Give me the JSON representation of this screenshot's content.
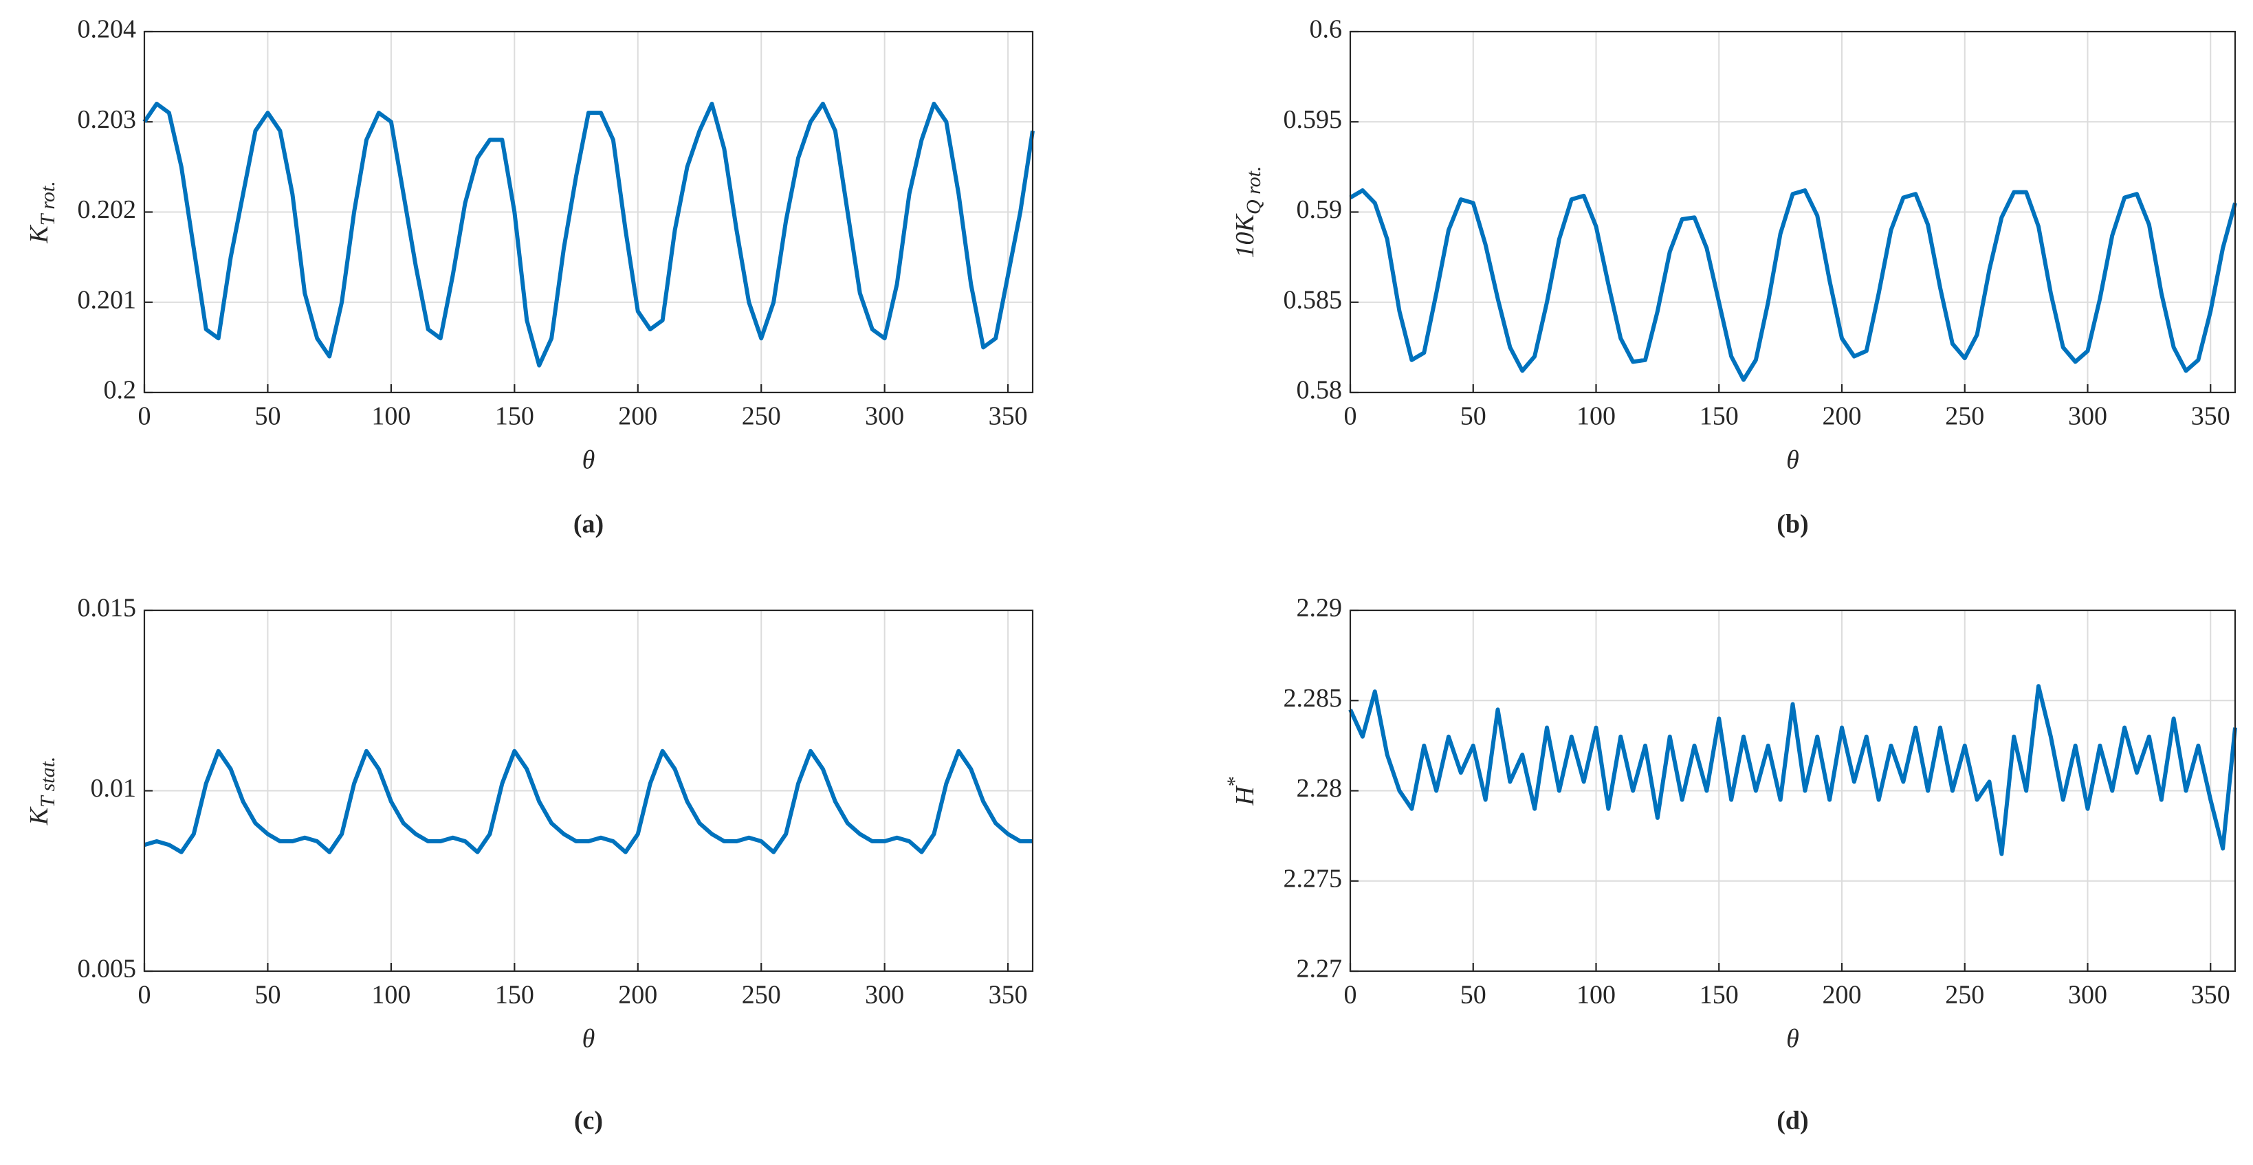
{
  "chart_data": [
    {
      "type": "line",
      "label": "(a)",
      "xlabel": "θ",
      "ylabel": {
        "base": "K",
        "sub": "T rot."
      },
      "xlim": [
        0,
        360
      ],
      "xticks": [
        0,
        50,
        100,
        150,
        200,
        250,
        300,
        350
      ],
      "ylim": [
        0.2,
        0.204
      ],
      "yticks": [
        0.2,
        0.201,
        0.202,
        0.203,
        0.204
      ],
      "grid": true,
      "x": [
        0,
        5,
        10,
        15,
        20,
        25,
        30,
        35,
        40,
        45,
        50,
        55,
        60,
        65,
        70,
        75,
        80,
        85,
        90,
        95,
        100,
        105,
        110,
        115,
        120,
        125,
        130,
        135,
        140,
        145,
        150,
        155,
        160,
        165,
        170,
        175,
        180,
        185,
        190,
        195,
        200,
        205,
        210,
        215,
        220,
        225,
        230,
        235,
        240,
        245,
        250,
        255,
        260,
        265,
        270,
        275,
        280,
        285,
        290,
        295,
        300,
        305,
        310,
        315,
        320,
        325,
        330,
        335,
        340,
        345,
        350,
        355,
        360
      ],
      "series": [
        {
          "color": "#0072bd",
          "values": [
            0.203,
            0.2032,
            0.2031,
            0.2025,
            0.2016,
            0.2007,
            0.2006,
            0.2015,
            0.2022,
            0.2029,
            0.2031,
            0.2029,
            0.2022,
            0.2011,
            0.2006,
            0.2004,
            0.201,
            0.202,
            0.2028,
            0.2031,
            0.203,
            0.2022,
            0.2014,
            0.2007,
            0.2006,
            0.2013,
            0.2021,
            0.2026,
            0.2028,
            0.2028,
            0.202,
            0.2008,
            0.2003,
            0.2006,
            0.2016,
            0.2024,
            0.2031,
            0.2031,
            0.2028,
            0.2018,
            0.2009,
            0.2007,
            0.2008,
            0.2018,
            0.2025,
            0.2029,
            0.2032,
            0.2027,
            0.2018,
            0.201,
            0.2006,
            0.201,
            0.2019,
            0.2026,
            0.203,
            0.2032,
            0.2029,
            0.202,
            0.2011,
            0.2007,
            0.2006,
            0.2012,
            0.2022,
            0.2028,
            0.2032,
            0.203,
            0.2022,
            0.2012,
            0.2005,
            0.2006,
            0.2013,
            0.202,
            0.2029
          ]
        }
      ]
    },
    {
      "type": "line",
      "label": "(b)",
      "xlabel": "θ",
      "ylabel": {
        "base": "10K",
        "sub": "Q rot."
      },
      "xlim": [
        0,
        360
      ],
      "xticks": [
        0,
        50,
        100,
        150,
        200,
        250,
        300,
        350
      ],
      "ylim": [
        0.58,
        0.6
      ],
      "yticks": [
        0.58,
        0.585,
        0.59,
        0.595,
        0.6
      ],
      "grid": true,
      "x": [
        0,
        5,
        10,
        15,
        20,
        25,
        30,
        35,
        40,
        45,
        50,
        55,
        60,
        65,
        70,
        75,
        80,
        85,
        90,
        95,
        100,
        105,
        110,
        115,
        120,
        125,
        130,
        135,
        140,
        145,
        150,
        155,
        160,
        165,
        170,
        175,
        180,
        185,
        190,
        195,
        200,
        205,
        210,
        215,
        220,
        225,
        230,
        235,
        240,
        245,
        250,
        255,
        260,
        265,
        270,
        275,
        280,
        285,
        290,
        295,
        300,
        305,
        310,
        315,
        320,
        325,
        330,
        335,
        340,
        345,
        350,
        355,
        360
      ],
      "series": [
        {
          "color": "#0072bd",
          "values": [
            0.5908,
            0.5912,
            0.5905,
            0.5885,
            0.5845,
            0.5818,
            0.5822,
            0.5855,
            0.589,
            0.5907,
            0.5905,
            0.5882,
            0.5852,
            0.5825,
            0.5812,
            0.582,
            0.585,
            0.5885,
            0.5907,
            0.5909,
            0.5892,
            0.586,
            0.583,
            0.5817,
            0.5818,
            0.5845,
            0.5878,
            0.5896,
            0.5897,
            0.588,
            0.585,
            0.582,
            0.5807,
            0.5818,
            0.585,
            0.5888,
            0.591,
            0.5912,
            0.5898,
            0.5862,
            0.583,
            0.582,
            0.5823,
            0.5855,
            0.589,
            0.5908,
            0.591,
            0.5893,
            0.5858,
            0.5827,
            0.5819,
            0.5832,
            0.5868,
            0.5897,
            0.5911,
            0.5911,
            0.5892,
            0.5855,
            0.5825,
            0.5817,
            0.5823,
            0.5852,
            0.5887,
            0.5908,
            0.591,
            0.5893,
            0.5855,
            0.5825,
            0.5812,
            0.5818,
            0.5845,
            0.588,
            0.5905
          ]
        }
      ]
    },
    {
      "type": "line",
      "label": "(c)",
      "xlabel": "θ",
      "ylabel": {
        "base": "K",
        "sub": "T stat."
      },
      "xlim": [
        0,
        360
      ],
      "xticks": [
        0,
        50,
        100,
        150,
        200,
        250,
        300,
        350
      ],
      "ylim": [
        0.005,
        0.015
      ],
      "yticks": [
        0.005,
        0.01,
        0.015
      ],
      "grid": true,
      "x": [
        0,
        5,
        10,
        15,
        20,
        25,
        30,
        35,
        40,
        45,
        50,
        55,
        60,
        65,
        70,
        75,
        80,
        85,
        90,
        95,
        100,
        105,
        110,
        115,
        120,
        125,
        130,
        135,
        140,
        145,
        150,
        155,
        160,
        165,
        170,
        175,
        180,
        185,
        190,
        195,
        200,
        205,
        210,
        215,
        220,
        225,
        230,
        235,
        240,
        245,
        250,
        255,
        260,
        265,
        270,
        275,
        280,
        285,
        290,
        295,
        300,
        305,
        310,
        315,
        320,
        325,
        330,
        335,
        340,
        345,
        350,
        355,
        360
      ],
      "series": [
        {
          "color": "#0072bd",
          "values": [
            0.0085,
            0.0086,
            0.0085,
            0.0083,
            0.0088,
            0.0102,
            0.0111,
            0.0106,
            0.0097,
            0.0091,
            0.0088,
            0.0086,
            0.0086,
            0.0087,
            0.0086,
            0.0083,
            0.0088,
            0.0102,
            0.0111,
            0.0106,
            0.0097,
            0.0091,
            0.0088,
            0.0086,
            0.0086,
            0.0087,
            0.0086,
            0.0083,
            0.0088,
            0.0102,
            0.0111,
            0.0106,
            0.0097,
            0.0091,
            0.0088,
            0.0086,
            0.0086,
            0.0087,
            0.0086,
            0.0083,
            0.0088,
            0.0102,
            0.0111,
            0.0106,
            0.0097,
            0.0091,
            0.0088,
            0.0086,
            0.0086,
            0.0087,
            0.0086,
            0.0083,
            0.0088,
            0.0102,
            0.0111,
            0.0106,
            0.0097,
            0.0091,
            0.0088,
            0.0086,
            0.0086,
            0.0087,
            0.0086,
            0.0083,
            0.0088,
            0.0102,
            0.0111,
            0.0106,
            0.0097,
            0.0091,
            0.0088,
            0.0086,
            0.0086
          ]
        }
      ]
    },
    {
      "type": "line",
      "label": "(d)",
      "xlabel": "θ",
      "ylabel": {
        "base": "H",
        "sup": "*"
      },
      "xlim": [
        0,
        360
      ],
      "xticks": [
        0,
        50,
        100,
        150,
        200,
        250,
        300,
        350
      ],
      "ylim": [
        2.27,
        2.29
      ],
      "yticks": [
        2.27,
        2.275,
        2.28,
        2.285,
        2.29
      ],
      "grid": true,
      "x": [
        0,
        5,
        10,
        15,
        20,
        25,
        30,
        35,
        40,
        45,
        50,
        55,
        60,
        65,
        70,
        75,
        80,
        85,
        90,
        95,
        100,
        105,
        110,
        115,
        120,
        125,
        130,
        135,
        140,
        145,
        150,
        155,
        160,
        165,
        170,
        175,
        180,
        185,
        190,
        195,
        200,
        205,
        210,
        215,
        220,
        225,
        230,
        235,
        240,
        245,
        250,
        255,
        260,
        265,
        270,
        275,
        280,
        285,
        290,
        295,
        300,
        305,
        310,
        315,
        320,
        325,
        330,
        335,
        340,
        345,
        350,
        355,
        360
      ],
      "series": [
        {
          "color": "#0072bd",
          "values": [
            2.2845,
            2.283,
            2.2855,
            2.282,
            2.28,
            2.279,
            2.2825,
            2.28,
            2.283,
            2.281,
            2.2825,
            2.2795,
            2.2845,
            2.2805,
            2.282,
            2.279,
            2.2835,
            2.28,
            2.283,
            2.2805,
            2.2835,
            2.279,
            2.283,
            2.28,
            2.2825,
            2.2785,
            2.283,
            2.2795,
            2.2825,
            2.28,
            2.284,
            2.2795,
            2.283,
            2.28,
            2.2825,
            2.2795,
            2.2848,
            2.28,
            2.283,
            2.2795,
            2.2835,
            2.2805,
            2.283,
            2.2795,
            2.2825,
            2.2805,
            2.2835,
            2.28,
            2.2835,
            2.28,
            2.2825,
            2.2795,
            2.2805,
            2.2765,
            2.283,
            2.28,
            2.2858,
            2.283,
            2.2795,
            2.2825,
            2.279,
            2.2825,
            2.28,
            2.2835,
            2.281,
            2.283,
            2.2795,
            2.284,
            2.28,
            2.2825,
            2.2795,
            2.2768,
            2.2835
          ]
        }
      ]
    }
  ]
}
